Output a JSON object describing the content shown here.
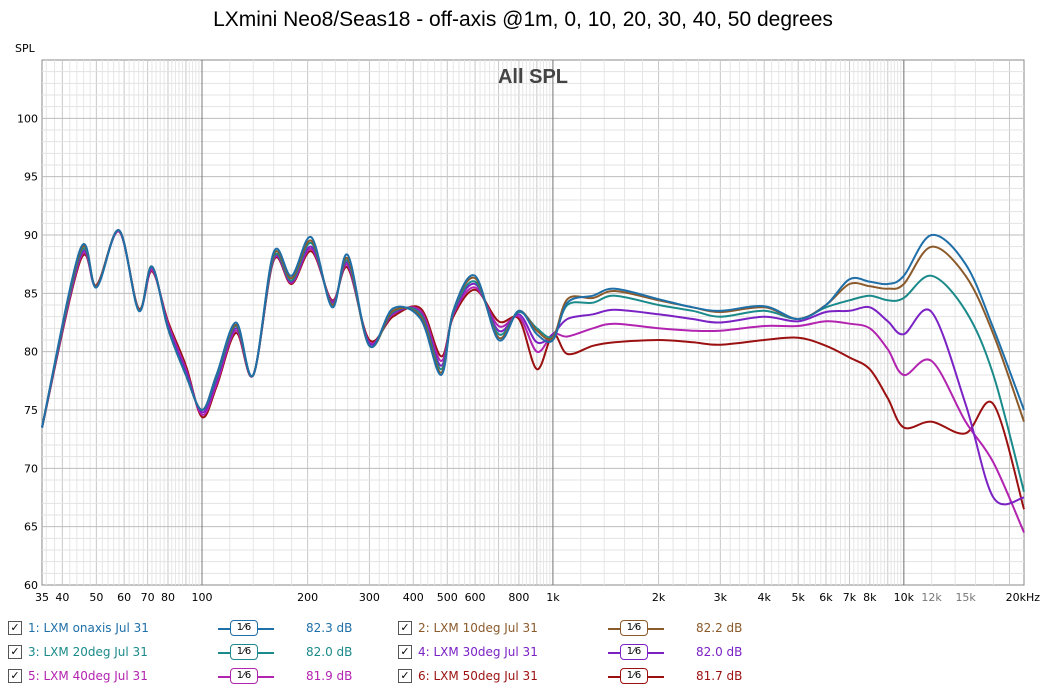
{
  "title": "LXmini Neo8/Seas18 - off-axis @1m, 0, 10, 20, 30, 40, 50 degrees",
  "chart_data": {
    "type": "line",
    "title": "LXmini Neo8/Seas18 - off-axis @1m, 0, 10, 20, 30, 40, 50 degrees",
    "subtitle": "All SPL",
    "ylabel": "SPL",
    "xlabel": "",
    "x_scale": "log",
    "xlim": [
      35,
      22000
    ],
    "ylim": [
      60,
      105
    ],
    "grid": true,
    "y_ticks": [
      "60",
      "65",
      "70",
      "75",
      "80",
      "85",
      "90",
      "95",
      "100"
    ],
    "x_ticks": [
      {
        "f": 35,
        "label": "35"
      },
      {
        "f": 40,
        "label": "40"
      },
      {
        "f": 50,
        "label": "50"
      },
      {
        "f": 60,
        "label": "60"
      },
      {
        "f": 70,
        "label": "70"
      },
      {
        "f": 80,
        "label": "80"
      },
      {
        "f": 100,
        "label": "100"
      },
      {
        "f": 200,
        "label": "200"
      },
      {
        "f": 300,
        "label": "300"
      },
      {
        "f": 400,
        "label": "400"
      },
      {
        "f": 500,
        "label": "500"
      },
      {
        "f": 600,
        "label": "600"
      },
      {
        "f": 800,
        "label": "800"
      },
      {
        "f": 1000,
        "label": "1k"
      },
      {
        "f": 2000,
        "label": "2k"
      },
      {
        "f": 3000,
        "label": "3k"
      },
      {
        "f": 4000,
        "label": "4k"
      },
      {
        "f": 5000,
        "label": "5k"
      },
      {
        "f": 6000,
        "label": "6k"
      },
      {
        "f": 7000,
        "label": "7k"
      },
      {
        "f": 8000,
        "label": "8k"
      },
      {
        "f": 10000,
        "label": "10k"
      },
      {
        "f": 12000,
        "label": "12k"
      },
      {
        "f": 15000,
        "label": "15k"
      },
      {
        "f": 20000,
        "label": "20kHz"
      }
    ],
    "x": [
      35,
      45,
      50,
      58,
      66,
      72,
      80,
      90,
      100,
      110,
      125,
      140,
      160,
      180,
      205,
      235,
      260,
      300,
      350,
      420,
      480,
      520,
      600,
      700,
      800,
      900,
      1000,
      1100,
      1300,
      1500,
      2000,
      2500,
      3000,
      4000,
      5000,
      6000,
      7000,
      8000,
      9000,
      10000,
      12000,
      15000,
      18000,
      22000
    ],
    "series": [
      {
        "name": "1: LXM onaxis Jul 31",
        "color": "#1f6fa8",
        "values": [
          73.5,
          88.8,
          85.5,
          90.4,
          83.5,
          87.3,
          82.0,
          78.0,
          75.0,
          78.0,
          82.5,
          78.0,
          88.5,
          86.5,
          89.8,
          83.8,
          88.3,
          80.5,
          83.7,
          82.8,
          78.0,
          83.5,
          86.5,
          81.0,
          83.5,
          81.5,
          81.0,
          84.2,
          84.8,
          85.4,
          84.5,
          83.8,
          83.5,
          83.9,
          82.8,
          84.0,
          86.2,
          86.0,
          85.8,
          86.5,
          90.0,
          87.5,
          82.0,
          75.0
        ]
      },
      {
        "name": "2: LXM 10deg Jul 31",
        "color": "#8b5a2b",
        "values": [
          73.5,
          88.6,
          85.6,
          90.4,
          83.6,
          87.3,
          82.0,
          78.0,
          75.0,
          78.0,
          82.3,
          78.0,
          88.3,
          86.3,
          89.5,
          84.0,
          88.0,
          80.5,
          83.5,
          83.0,
          78.2,
          83.5,
          86.3,
          81.2,
          83.5,
          81.8,
          81.2,
          84.5,
          84.6,
          85.2,
          84.4,
          83.8,
          83.4,
          83.8,
          82.8,
          84.0,
          85.8,
          85.6,
          85.4,
          85.8,
          89.0,
          86.5,
          81.5,
          74.0
        ]
      },
      {
        "name": "3: LXM 20deg Jul 31",
        "color": "#1b8a8a",
        "values": [
          73.5,
          88.4,
          85.6,
          90.4,
          83.6,
          87.3,
          82.0,
          78.0,
          75.0,
          77.8,
          82.2,
          78.0,
          88.1,
          86.1,
          89.3,
          84.0,
          87.8,
          80.5,
          83.4,
          83.2,
          78.5,
          83.4,
          86.0,
          81.5,
          83.4,
          82.0,
          81.3,
          84.0,
          84.2,
          84.8,
          84.0,
          83.5,
          83.0,
          83.5,
          82.8,
          83.8,
          84.4,
          84.8,
          84.4,
          84.6,
          86.5,
          83.5,
          78.0,
          68.0
        ]
      },
      {
        "name": "4: LXM 30deg Jul 31",
        "color": "#7b22c4",
        "values": [
          73.5,
          88.2,
          85.6,
          90.4,
          83.6,
          87.2,
          82.2,
          78.3,
          74.8,
          77.5,
          82.0,
          78.0,
          88.0,
          86.0,
          89.0,
          84.2,
          87.6,
          80.7,
          83.3,
          83.3,
          78.8,
          83.3,
          85.8,
          81.8,
          83.2,
          80.8,
          81.5,
          82.8,
          83.2,
          83.6,
          83.2,
          82.8,
          82.5,
          83.0,
          82.6,
          83.4,
          83.5,
          83.8,
          82.6,
          81.5,
          83.4,
          75.5,
          67.5,
          67.5
        ]
      },
      {
        "name": "5: LXM 40deg Jul 31",
        "color": "#b223b0",
        "values": [
          73.5,
          88.0,
          85.6,
          90.3,
          83.6,
          87.0,
          82.4,
          78.5,
          74.6,
          77.2,
          81.8,
          78.0,
          87.9,
          85.9,
          88.8,
          84.3,
          87.4,
          80.8,
          83.2,
          83.5,
          79.2,
          83.2,
          85.5,
          82.2,
          83.0,
          80.0,
          81.5,
          81.3,
          82.0,
          82.4,
          82.0,
          81.8,
          81.8,
          82.2,
          82.2,
          82.6,
          82.4,
          82.0,
          80.2,
          78.0,
          79.2,
          74.0,
          70.5,
          64.5
        ]
      },
      {
        "name": "6: LXM 50deg Jul 31",
        "color": "#9b1010",
        "values": [
          73.5,
          87.8,
          85.7,
          90.3,
          83.7,
          86.9,
          82.6,
          78.8,
          74.4,
          77.0,
          81.6,
          78.0,
          87.8,
          85.8,
          88.6,
          84.4,
          87.2,
          81.0,
          83.0,
          83.7,
          79.6,
          83.0,
          85.3,
          82.6,
          82.8,
          78.5,
          81.5,
          79.8,
          80.5,
          80.8,
          81.0,
          80.8,
          80.6,
          81.0,
          81.2,
          80.5,
          79.5,
          78.5,
          76.0,
          73.5,
          74.0,
          73.0,
          75.5,
          66.5
        ]
      }
    ]
  },
  "legend": [
    {
      "check": "✓",
      "label": "1: LXM onaxis Jul 31",
      "smoothing": "1⁄6",
      "value": "82.3 dB",
      "color": "#1f6fa8"
    },
    {
      "check": "✓",
      "label": "2: LXM 10deg Jul 31",
      "smoothing": "1⁄6",
      "value": "82.2 dB",
      "color": "#8b5a2b"
    },
    {
      "check": "✓",
      "label": "3: LXM 20deg Jul 31",
      "smoothing": "1⁄6",
      "value": "82.0 dB",
      "color": "#1b8a8a"
    },
    {
      "check": "✓",
      "label": "4: LXM 30deg Jul 31",
      "smoothing": "1⁄6",
      "value": "82.0 dB",
      "color": "#7b22c4"
    },
    {
      "check": "✓",
      "label": "5: LXM 40deg Jul 31",
      "smoothing": "1⁄6",
      "value": "81.9 dB",
      "color": "#b223b0"
    },
    {
      "check": "✓",
      "label": "6: LXM 50deg Jul 31",
      "smoothing": "1⁄6",
      "value": "81.7 dB",
      "color": "#9b1010"
    }
  ]
}
